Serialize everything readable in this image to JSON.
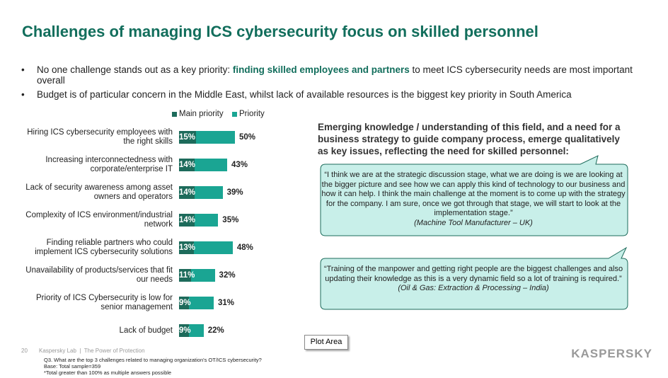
{
  "slide_title": "Challenges of managing ICS cybersecurity focus on skilled personnel",
  "bullets": [
    {
      "parts": [
        "No one challenge stands out as a key priority: ",
        "finding skilled employees and partners",
        " to meet ICS cybersecurity needs are most important overall"
      ]
    },
    {
      "parts": [
        "Budget is of particular concern in the Middle East, whilst lack of available resources is the biggest key priority in South America"
      ]
    }
  ],
  "chart_data": {
    "type": "bar",
    "orientation": "horizontal",
    "categories": [
      "Hiring ICS cybersecurity employees with the right skills",
      "Increasing interconnectedness with corporate/enterprise IT",
      "Lack of security awareness among asset owners and operators",
      "Complexity of ICS environment/industrial network",
      "Finding reliable partners who could implement ICS cybersecurity solutions",
      "Unavailability of products/services that fit our needs",
      "Priority of ICS Cybersecurity is low for senior management",
      "Lack of budget"
    ],
    "series": [
      {
        "name": "Main priority",
        "color": "#1d6b5b",
        "values": [
          15,
          14,
          14,
          14,
          13,
          11,
          9,
          9
        ],
        "value_labels": [
          "15%",
          "14%",
          "14%",
          "14%",
          "13%",
          "11%",
          "9%",
          "9%"
        ]
      },
      {
        "name": "Priority",
        "color": "#1aa593",
        "values": [
          50,
          43,
          39,
          35,
          48,
          32,
          31,
          22
        ],
        "value_labels": [
          "50%",
          "43%",
          "39%",
          "35%",
          "48%",
          "32%",
          "31%",
          "22%"
        ]
      }
    ],
    "xlim": [
      0,
      100
    ],
    "legend": "top"
  },
  "insight": "Emerging knowledge / understanding of this field, and a need for a business strategy to guide company process, emerge qualitatively as key issues, reflecting the need for skilled personnel:",
  "quotes": [
    {
      "text": "“I think we are at the strategic discussion stage, what we are doing is we are looking at the bigger picture and see how we can apply this kind of technology to our business and how it can help. I think the main challenge at the moment is to come up with the strategy for the company. I am sure, once we got through that stage, we will start to look at the implementation stage.”",
      "source": "(Machine Tool Manufacturer – UK)"
    },
    {
      "text": "“Training of the manpower and getting right people are the biggest challenges and also updating their knowledge as this is a very dynamic field so a lot of training is required.”",
      "source": "(Oil & Gas: Extraction & Processing – India)"
    }
  ],
  "tooltip": "Plot Area",
  "footer": {
    "page": "20",
    "company": "Kaspersky Lab  |  The Power of Protection",
    "logo": "KASPERSKY"
  },
  "notes": [
    "Q3. What are the top 3 challenges related to managing organization's OT/ICS cybersecurity?",
    "Base: Total sample=359",
    "*Total greater than 100% as multiple answers possible"
  ]
}
